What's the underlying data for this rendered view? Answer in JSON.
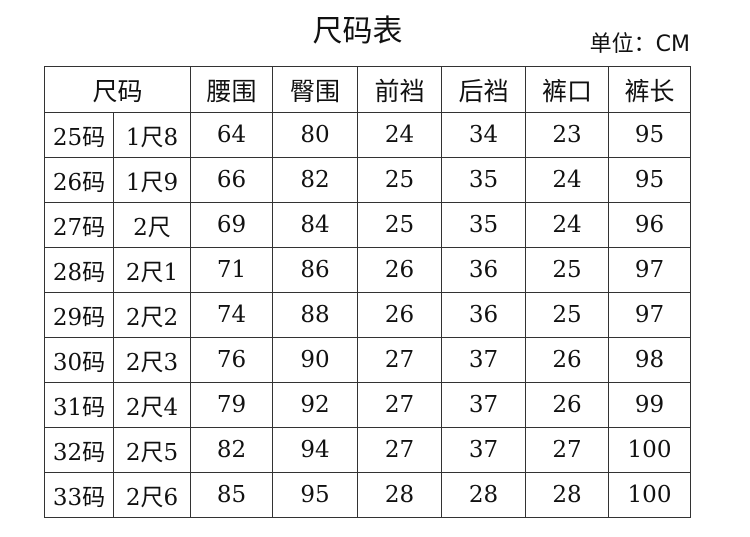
{
  "title": "尺码表",
  "unit": "单位：CM",
  "headers": [
    "尺码",
    "腰围",
    "臀围",
    "前裆",
    "后裆",
    "裤口",
    "裤长"
  ],
  "rows": [
    [
      "25码",
      "1尺8",
      "64",
      "80",
      "24",
      "34",
      "23",
      "95"
    ],
    [
      "26码",
      "1尺9",
      "66",
      "82",
      "25",
      "35",
      "24",
      "95"
    ],
    [
      "27码",
      "2尺",
      "69",
      "84",
      "25",
      "35",
      "24",
      "96"
    ],
    [
      "28码",
      "2尺1",
      "71",
      "86",
      "26",
      "36",
      "25",
      "97"
    ],
    [
      "29码",
      "2尺2",
      "74",
      "88",
      "26",
      "36",
      "25",
      "97"
    ],
    [
      "30码",
      "2尺3",
      "76",
      "90",
      "27",
      "37",
      "26",
      "98"
    ],
    [
      "31码",
      "2尺4",
      "79",
      "92",
      "27",
      "37",
      "26",
      "99"
    ],
    [
      "32码",
      "2尺5",
      "82",
      "94",
      "27",
      "37",
      "27",
      "100"
    ],
    [
      "33码",
      "2尺6",
      "85",
      "95",
      "28",
      "28",
      "28",
      "100"
    ]
  ]
}
